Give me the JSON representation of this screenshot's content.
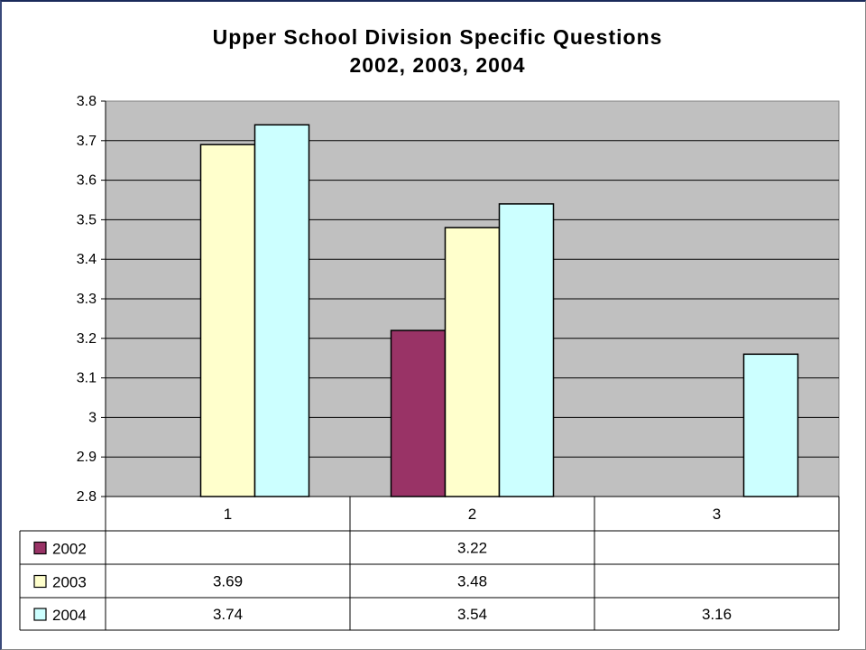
{
  "chart_data": {
    "type": "bar",
    "title": "Upper School Division Specific Questions",
    "subtitle": "2002, 2003, 2004",
    "categories": [
      "1",
      "2",
      "3"
    ],
    "series": [
      {
        "name": "2002",
        "values": [
          null,
          3.22,
          null
        ],
        "labels": [
          "",
          "3.22",
          ""
        ],
        "color": "#993366"
      },
      {
        "name": "2003",
        "values": [
          3.69,
          3.48,
          null
        ],
        "labels": [
          "3.69",
          "3.48",
          ""
        ],
        "color": "#FFFFCC"
      },
      {
        "name": "2004",
        "values": [
          3.74,
          3.54,
          3.16
        ],
        "labels": [
          "3.74",
          "3.54",
          "3.16"
        ],
        "color": "#CCFFFF"
      }
    ],
    "ylim": [
      2.8,
      3.8
    ],
    "yticks": [
      "3.8",
      "3.7",
      "3.6",
      "3.5",
      "3.4",
      "3.3",
      "3.2",
      "3.1",
      "3",
      "2.9",
      "2.8"
    ],
    "grid": true,
    "plot_background": "#C0C0C0",
    "legend_placement": "data-table-left",
    "xlabel": "",
    "ylabel": ""
  }
}
